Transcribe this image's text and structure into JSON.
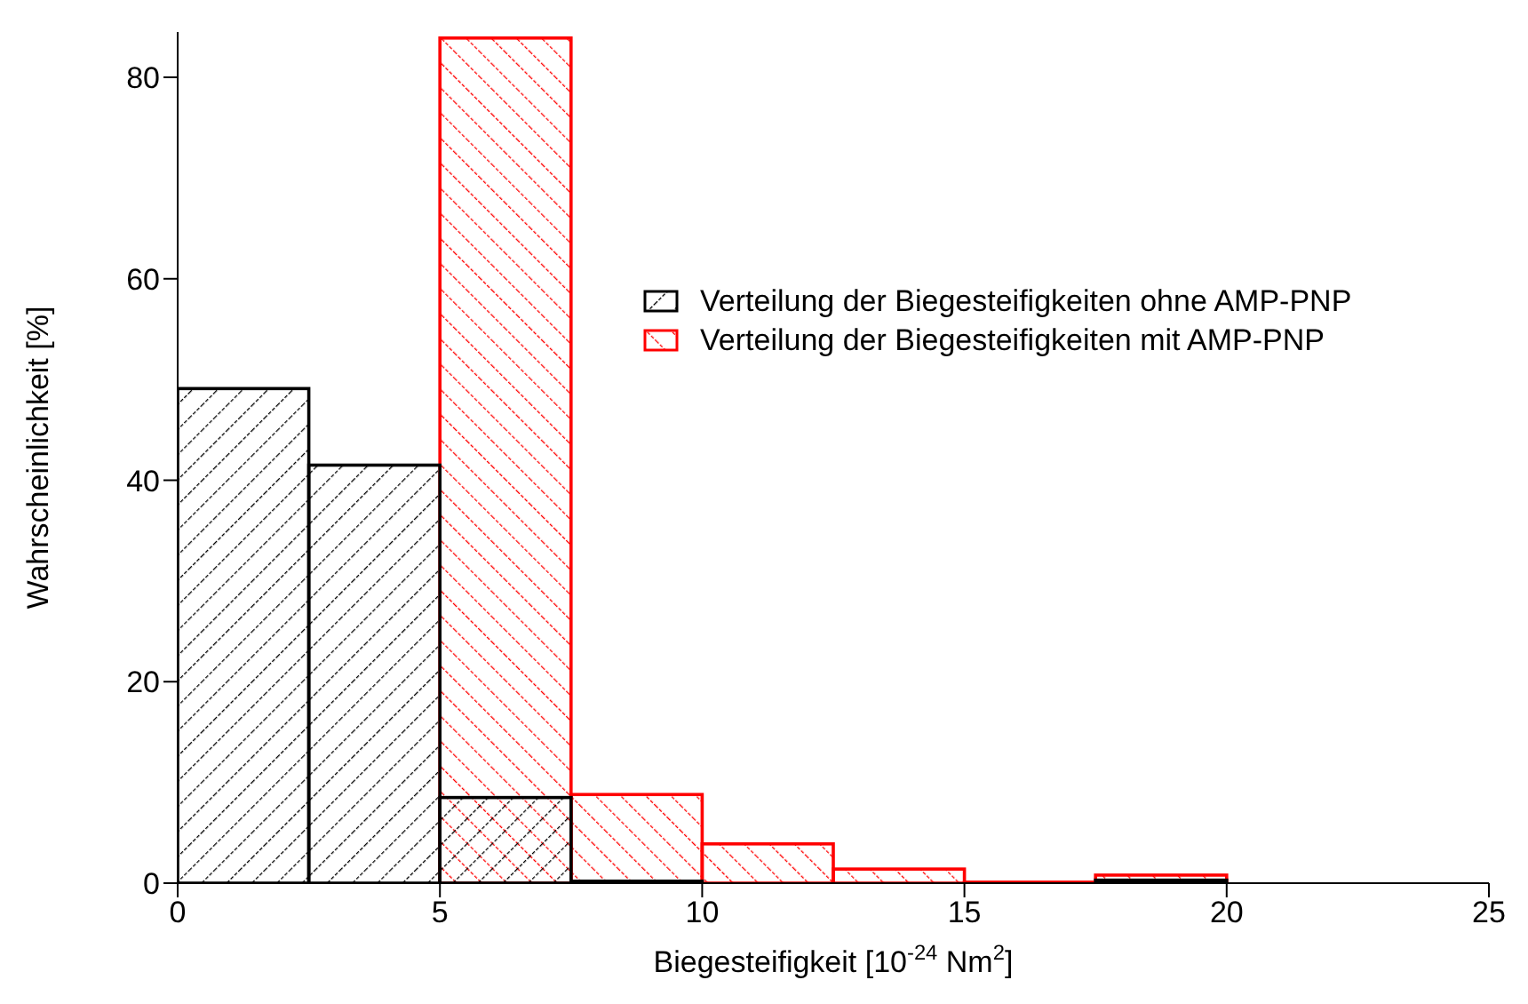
{
  "chart_data": {
    "type": "histogram",
    "xlabel": "Biegesteifigkeit [10$^{-24}$ Nm$^{2}$]",
    "ylabel": "Wahrscheinlichkeit [%]",
    "bins": [
      0,
      2.5,
      5,
      7.5,
      10,
      12.5,
      15,
      17.5,
      20,
      22.5,
      25
    ],
    "series": [
      {
        "name": "Verteilung der Biegesteifigkeiten mit AMP-PNP",
        "color": "#ff0000",
        "values": [
          0,
          0,
          83.9,
          8.8,
          3.9,
          1.4,
          0.1,
          0.8,
          0,
          0
        ]
      },
      {
        "name": "Verteilung der Biegesteifigkeiten ohne AMP-PNP",
        "color": "#000000",
        "values": [
          49.1,
          41.5,
          8.5,
          0.2,
          0,
          0,
          0,
          0.3,
          0,
          0
        ]
      }
    ],
    "xlim": [
      0,
      25
    ],
    "xticks": [
      0,
      5,
      10,
      15,
      20,
      25
    ],
    "ylim": [
      0,
      84.5
    ],
    "yticks": [
      0,
      20,
      40,
      60,
      80
    ],
    "grid": false,
    "legend": "right"
  }
}
